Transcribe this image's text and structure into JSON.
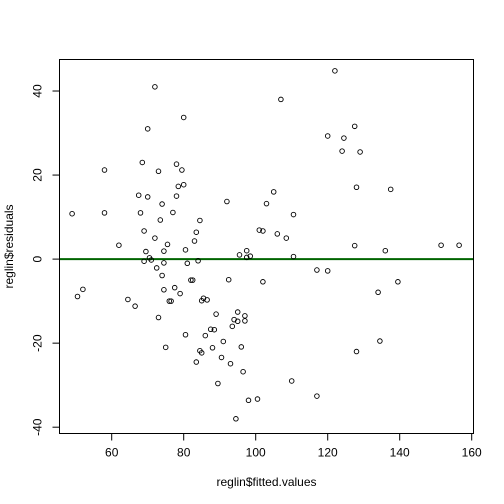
{
  "chart_data": {
    "type": "scatter",
    "title": "",
    "xlabel": "reglin$fitted.values",
    "ylabel": "reglin$residuals",
    "xlim": [
      45.5,
      160.5
    ],
    "ylim": [
      -41.5,
      47.5
    ],
    "xticks": [
      60,
      80,
      100,
      120,
      140,
      160
    ],
    "yticks": [
      -40,
      -20,
      0,
      20,
      40
    ],
    "grid": false,
    "legend": "none",
    "reference_line": {
      "y": 0,
      "color": "#006400"
    },
    "marker_color": "#000000",
    "series": [
      {
        "x": [
          49.0,
          50.5,
          52.0,
          58.0,
          58.0,
          62.0,
          64.5,
          66.5,
          67.5,
          68.0,
          68.5,
          69.0,
          69.0,
          69.5,
          70.0,
          70.0,
          70.5,
          71.0,
          72.0,
          72.0,
          72.5,
          73.0,
          73.0,
          73.5,
          74.0,
          74.0,
          74.5,
          74.5,
          74.5,
          75.0,
          75.5,
          76.0,
          76.5,
          77.0,
          77.5,
          78.0,
          78.0,
          78.5,
          79.0,
          79.5,
          80.0,
          80.0,
          80.5,
          80.5,
          81.0,
          82.0,
          82.5,
          83.0,
          83.5,
          83.5,
          84.0,
          84.5,
          84.5,
          85.0,
          85.0,
          85.5,
          86.0,
          86.5,
          87.5,
          88.0,
          88.5,
          89.0,
          89.5,
          90.5,
          91.0,
          92.0,
          92.5,
          93.0,
          93.5,
          94.0,
          94.5,
          95.0,
          95.0,
          95.5,
          96.0,
          96.5,
          97.0,
          97.0,
          97.5,
          97.5,
          98.0,
          98.5,
          100.5,
          101.0,
          102.0,
          102.0,
          103.0,
          105.0,
          106.0,
          107.0,
          108.5,
          110.0,
          110.5,
          110.5,
          117.0,
          117.0,
          120.0,
          120.0,
          122.0,
          124.0,
          124.5,
          127.5,
          127.5,
          128.0,
          128.0,
          129.0,
          134.0,
          134.5,
          136.0,
          137.5,
          139.5,
          151.5,
          156.5
        ],
        "y": [
          10.8,
          -8.9,
          -7.2,
          21.2,
          11.0,
          3.3,
          -9.6,
          -11.2,
          15.2,
          11.0,
          23.0,
          -0.5,
          6.7,
          1.8,
          14.8,
          31.0,
          0.3,
          -0.2,
          41.0,
          5.0,
          -2.1,
          -13.9,
          20.9,
          9.3,
          13.1,
          -3.9,
          -7.3,
          1.9,
          -0.9,
          -21.0,
          3.5,
          -10.0,
          -10.0,
          11.1,
          -6.8,
          22.6,
          15.0,
          17.3,
          -8.2,
          21.2,
          33.7,
          17.7,
          -18.0,
          2.2,
          -1.0,
          -5.0,
          -5.0,
          4.3,
          6.4,
          -24.5,
          -0.4,
          -21.8,
          9.2,
          -22.3,
          -9.9,
          -9.3,
          -18.2,
          -9.7,
          -16.7,
          -21.1,
          -16.8,
          -13.1,
          -29.6,
          -23.4,
          -19.6,
          13.7,
          -4.9,
          -24.9,
          -16.0,
          -14.4,
          -38.0,
          -12.6,
          -14.8,
          1.0,
          -20.9,
          -26.8,
          -14.7,
          -13.5,
          2.0,
          0.4,
          -33.6,
          0.7,
          -33.3,
          6.9,
          6.7,
          -5.4,
          13.2,
          16.0,
          6.0,
          38.0,
          5.0,
          -29.0,
          10.6,
          0.6,
          -2.6,
          -32.6,
          29.3,
          -2.8,
          44.8,
          25.7,
          28.8,
          31.6,
          3.2,
          -22.0,
          17.1,
          25.5,
          -7.9,
          -19.5,
          2.0,
          16.6,
          -5.4,
          3.3,
          3.3
        ]
      }
    ]
  }
}
